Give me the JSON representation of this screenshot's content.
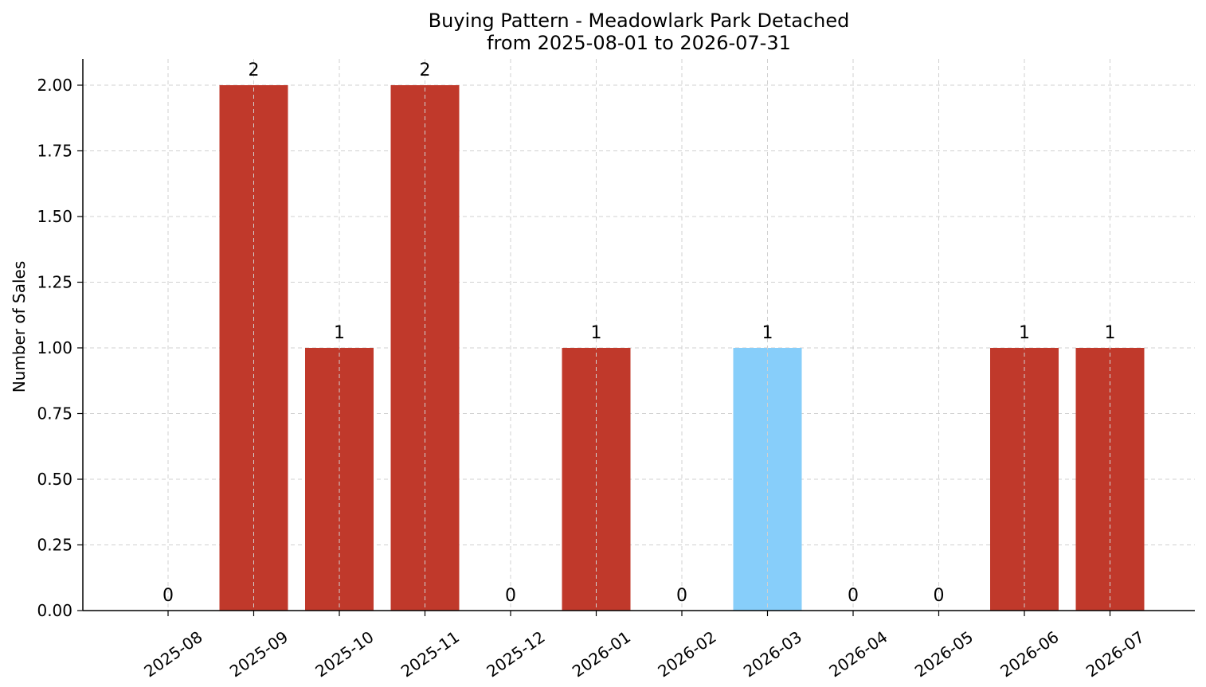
{
  "chart_data": {
    "type": "bar",
    "title": "Buying Pattern - Meadowlark Park Detached",
    "subtitle": "from 2025-08-01 to 2026-07-31",
    "xlabel": "",
    "ylabel": "Number of Sales",
    "categories": [
      "2025-08",
      "2025-09",
      "2025-10",
      "2025-11",
      "2025-12",
      "2026-01",
      "2026-02",
      "2026-03",
      "2026-04",
      "2026-05",
      "2026-06",
      "2026-07"
    ],
    "values": [
      0,
      2,
      1,
      2,
      0,
      1,
      0,
      1,
      0,
      0,
      1,
      1
    ],
    "data_labels": [
      "0",
      "2",
      "1",
      "2",
      "0",
      "1",
      "0",
      "1",
      "0",
      "0",
      "1",
      "1"
    ],
    "bar_colors": [
      "#c0392b",
      "#c0392b",
      "#c0392b",
      "#c0392b",
      "#c0392b",
      "#c0392b",
      "#c0392b",
      "#87cefa",
      "#c0392b",
      "#c0392b",
      "#c0392b",
      "#c0392b"
    ],
    "ylim": [
      0,
      2.1
    ],
    "yticks": [
      0,
      0.25,
      0.5,
      0.75,
      1.0,
      1.25,
      1.5,
      1.75,
      2.0
    ],
    "ytick_labels": [
      "0.00",
      "0.25",
      "0.50",
      "0.75",
      "1.00",
      "1.25",
      "1.50",
      "1.75",
      "2.00"
    ],
    "grid": true,
    "legend": "none"
  }
}
